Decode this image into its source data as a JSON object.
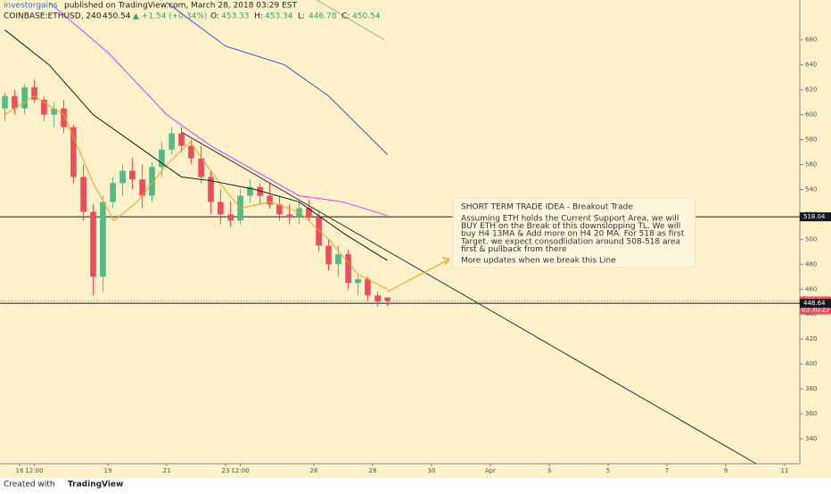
{
  "header": {
    "author": "investorgains",
    "published": "published on TradingView.com, March 28, 2018 03:29 EST",
    "symbol": "COINBASE:ETHUSD, 240",
    "last": "450.54",
    "change": "▲ +1.54 (+0.34%)",
    "ohlc": [
      {
        "label": "O:",
        "value": "453.33"
      },
      {
        "label": "H:",
        "value": "453.34"
      },
      {
        "label": "L:",
        "value": "446.78"
      },
      {
        "label": "C:",
        "value": "450.54"
      }
    ]
  },
  "chart_data": {
    "type": "candlestick",
    "up_color": "#53b987",
    "down_color": "#eb4d5c",
    "x": [
      -0.5,
      -0.17,
      0.17,
      0.5,
      0.83,
      1.17,
      1.5,
      1.83,
      2.17,
      2.5,
      2.83,
      3.17,
      3.5,
      3.83,
      4.17,
      4.5,
      4.83,
      5.17,
      5.5,
      5.83,
      6.17,
      6.5,
      6.83,
      7.17,
      7.5,
      7.83,
      8.17,
      8.5,
      8.83,
      9.17,
      9.5,
      9.83,
      10.17,
      10.5,
      10.83,
      11.17,
      11.5,
      11.83,
      12.17,
      12.5
    ],
    "open": [
      605,
      615,
      605,
      622,
      612,
      600,
      605,
      590,
      550,
      522,
      470,
      530,
      545,
      555,
      548,
      535,
      558,
      572,
      585,
      575,
      565,
      550,
      530,
      520,
      515,
      535,
      542,
      535,
      528,
      520,
      518,
      525,
      518,
      495,
      480,
      488,
      465,
      468,
      455,
      453.33
    ],
    "high": [
      618,
      620,
      625,
      628,
      615,
      610,
      612,
      592,
      560,
      528,
      535,
      550,
      560,
      565,
      560,
      562,
      578,
      590,
      590,
      580,
      575,
      555,
      540,
      530,
      540,
      548,
      545,
      545,
      535,
      528,
      530,
      532,
      522,
      500,
      495,
      492,
      472,
      470,
      458,
      453.34
    ],
    "low": [
      595,
      600,
      600,
      610,
      595,
      590,
      585,
      545,
      515,
      455,
      458,
      525,
      535,
      540,
      525,
      530,
      550,
      568,
      570,
      560,
      545,
      520,
      512,
      510,
      512,
      530,
      528,
      525,
      515,
      512,
      512,
      515,
      490,
      475,
      470,
      460,
      455,
      450,
      446,
      446.78
    ],
    "close": [
      615,
      605,
      622,
      612,
      600,
      605,
      590,
      550,
      522,
      470,
      530,
      545,
      555,
      548,
      535,
      558,
      572,
      585,
      575,
      565,
      550,
      530,
      520,
      515,
      535,
      542,
      535,
      528,
      520,
      518,
      525,
      518,
      495,
      480,
      488,
      465,
      468,
      455,
      450,
      450.54
    ],
    "lines": [
      {
        "color": "#f7a21b",
        "x": [
          -0.5,
          0.5,
          1.5,
          2.5,
          3.2,
          4,
          5,
          5.8,
          6.8,
          7.5,
          8.5,
          9.5,
          10.5,
          11.5,
          12.5
        ],
        "values": [
          600,
          615,
          600,
          545,
          515,
          530,
          560,
          578,
          545,
          525,
          530,
          522,
          500,
          472,
          460
        ]
      },
      {
        "color": "#1a1a1a",
        "x": [
          -0.5,
          1,
          2.5,
          4,
          5.5,
          6.5,
          8,
          9.5,
          11,
          12.5
        ],
        "values": [
          668,
          640,
          600,
          575,
          550,
          547,
          540,
          530,
          505,
          483
        ]
      },
      {
        "color": "#e040fb",
        "x": [
          1,
          3,
          5,
          6.5,
          8,
          9.5,
          11,
          12.5
        ],
        "values": [
          690,
          650,
          600,
          575,
          555,
          535,
          530,
          519
        ]
      },
      {
        "color": "#3f51d8",
        "x": [
          5,
          7,
          9,
          10.5,
          12.5
        ],
        "values": [
          690,
          655,
          640,
          615,
          568
        ]
      },
      {
        "color": "#8fbf7f",
        "x": [
          10.1,
          12.4
        ],
        "values": [
          692,
          660
        ]
      },
      {
        "color": "#333333",
        "x": [
          5.5,
          25.03
        ],
        "values": [
          586,
          320
        ]
      },
      {
        "color": "#f7a21b",
        "x": [
          12.5,
          14.6
        ],
        "values": [
          458,
          484
        ]
      }
    ],
    "price_tags": [
      {
        "value": 518.04,
        "color": "#131722"
      },
      {
        "value": 450.54,
        "color": "#eb4d5c"
      },
      {
        "value": 448.64,
        "color": "#131722"
      }
    ],
    "countdown": "03:30:22",
    "xlim": [
      -0.667,
      26.515
    ],
    "ylim": [
      320,
      692
    ],
    "yticks": [
      340,
      360,
      380,
      400,
      420,
      440,
      460,
      480,
      500,
      520,
      540,
      560,
      580,
      600,
      620,
      640,
      660
    ],
    "xticks": [
      {
        "value": 0,
        "label": "16"
      },
      {
        "value": 0.5,
        "label": "12:00"
      },
      {
        "value": 3,
        "label": "19"
      },
      {
        "value": 5,
        "label": "21"
      },
      {
        "value": 7,
        "label": "23"
      },
      {
        "value": 7.5,
        "label": "12:00"
      },
      {
        "value": 10,
        "label": "26"
      },
      {
        "value": 12,
        "label": "28"
      },
      {
        "value": 14,
        "label": "30"
      },
      {
        "value": 16,
        "label": "Apr"
      },
      {
        "value": 18,
        "label": "3"
      },
      {
        "value": 20,
        "label": "5"
      },
      {
        "value": 22,
        "label": "7"
      },
      {
        "value": 24,
        "label": "9"
      },
      {
        "value": 26,
        "label": "11"
      }
    ],
    "grid": false
  },
  "annotation": {
    "title": "SHORT TERM TRADE IDEA - Breakout Trade",
    "lines": [
      "Assuming ETH holds the Current Support Area, we will",
      "BUY ETH on the Break of this downslopping TL. We will",
      "buy H4 13MA & Add more on H4 20 MA. For 518 as first",
      "Target. we expect consodlidation around 508-518 area",
      "first & pullback from there"
    ],
    "footer": "More updates when we break this Line"
  },
  "footer": {
    "created": "Created with",
    "brand": "TradingView"
  }
}
